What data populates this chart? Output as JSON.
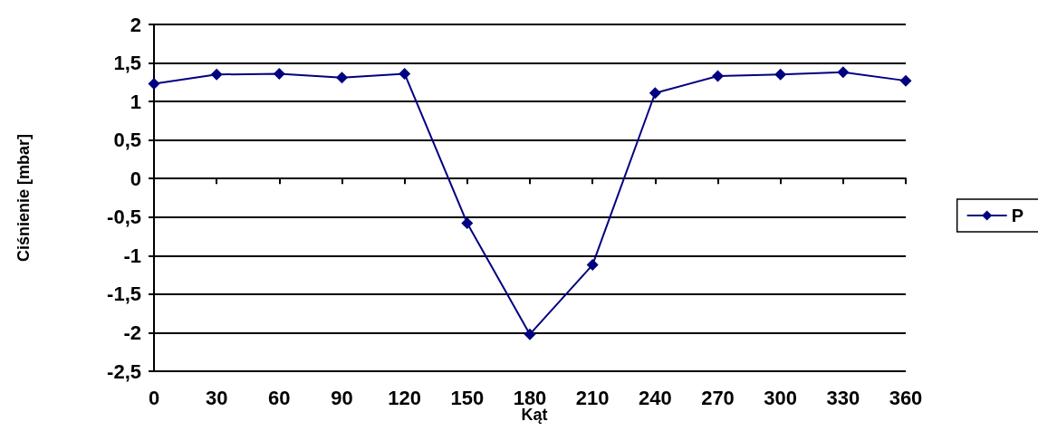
{
  "chart_data": {
    "type": "line",
    "xlabel": "Kąt",
    "ylabel": "Ciśnienie [mbar]",
    "categories": [
      "0",
      "30",
      "60",
      "90",
      "120",
      "150",
      "180",
      "210",
      "240",
      "270",
      "300",
      "330",
      "360"
    ],
    "series": [
      {
        "name": "P",
        "color": "#000080",
        "values": [
          1.23,
          1.35,
          1.36,
          1.31,
          1.36,
          -0.58,
          -2.02,
          -1.12,
          1.11,
          1.33,
          1.35,
          1.38,
          1.27
        ]
      }
    ],
    "ylim": [
      -2.5,
      2
    ],
    "yticks": [
      {
        "value": -2.5,
        "label": "-2,5"
      },
      -2,
      {
        "value": -1.5,
        "label": "-1,5"
      },
      -1,
      {
        "value": -0.5,
        "label": "-0,5"
      },
      0,
      {
        "value": 0.5,
        "label": "0,5"
      },
      1,
      {
        "value": 1.5,
        "label": "1,5"
      },
      2
    ],
    "grid": "y",
    "legend": "right",
    "marker": "diamond",
    "line_style": "solid"
  }
}
